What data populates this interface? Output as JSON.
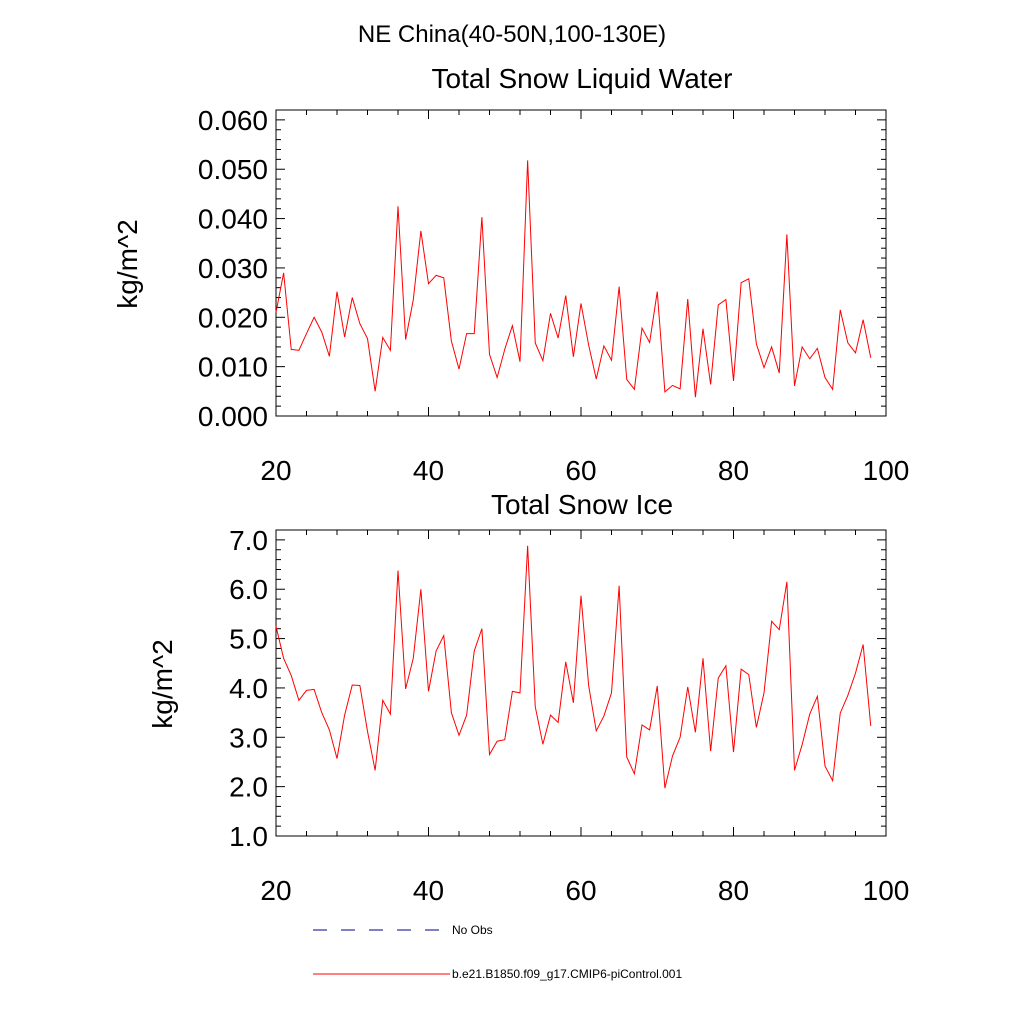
{
  "suptitle": "NE China(40-50N,100-130E)",
  "chart_data": [
    {
      "type": "line",
      "title": "Total Snow Liquid Water",
      "xlabel": "",
      "ylabel": "kg/m^2",
      "xlim": [
        20,
        100
      ],
      "ylim": [
        0.0,
        0.062
      ],
      "xticks": [
        "20",
        "40",
        "60",
        "80",
        "100"
      ],
      "yticks": [
        "0.000",
        "0.010",
        "0.020",
        "0.030",
        "0.040",
        "0.050",
        "0.060"
      ],
      "series": [
        {
          "name": "b.e21.B1850.f09_g17.CMIP6-piControl.001",
          "color": "#ff0000",
          "x": [
            20,
            21,
            22,
            23,
            24,
            25,
            26,
            27,
            28,
            29,
            30,
            31,
            32,
            33,
            34,
            35,
            36,
            37,
            38,
            39,
            40,
            41,
            42,
            43,
            44,
            45,
            46,
            47,
            48,
            49,
            50,
            51,
            52,
            53,
            54,
            55,
            56,
            57,
            58,
            59,
            60,
            61,
            62,
            63,
            64,
            65,
            66,
            67,
            68,
            69,
            70,
            71,
            72,
            73,
            74,
            75,
            76,
            77,
            78,
            79,
            80,
            81,
            82,
            83,
            84,
            85,
            86,
            87,
            88,
            89,
            90,
            91,
            92,
            93,
            94,
            95,
            96,
            97,
            98
          ],
          "values": [
            0.021,
            0.029,
            0.0135,
            0.0133,
            0.0167,
            0.02,
            0.017,
            0.0121,
            0.0252,
            0.016,
            0.024,
            0.0187,
            0.0157,
            0.005,
            0.0159,
            0.0133,
            0.0425,
            0.0155,
            0.0235,
            0.0375,
            0.0268,
            0.0285,
            0.028,
            0.0152,
            0.0095,
            0.0167,
            0.0167,
            0.0403,
            0.0125,
            0.0078,
            0.0135,
            0.0183,
            0.011,
            0.0518,
            0.0148,
            0.0112,
            0.0208,
            0.0158,
            0.0244,
            0.012,
            0.0228,
            0.0144,
            0.0075,
            0.0142,
            0.0113,
            0.0262,
            0.0074,
            0.0054,
            0.0178,
            0.0149,
            0.0252,
            0.0049,
            0.0062,
            0.0055,
            0.0237,
            0.0038,
            0.0177,
            0.0064,
            0.0225,
            0.0236,
            0.0071,
            0.027,
            0.0278,
            0.0146,
            0.0098,
            0.014,
            0.0087,
            0.0368,
            0.0061,
            0.014,
            0.0116,
            0.0137,
            0.0078,
            0.0054,
            0.0215,
            0.0148,
            0.0128,
            0.0195,
            0.0118
          ]
        }
      ]
    },
    {
      "type": "line",
      "title": "Total Snow Ice",
      "xlabel": "",
      "ylabel": "kg/m^2",
      "xlim": [
        20,
        100
      ],
      "ylim": [
        1.0,
        7.2
      ],
      "xticks": [
        "20",
        "40",
        "60",
        "80",
        "100"
      ],
      "yticks": [
        "1.0",
        "2.0",
        "3.0",
        "4.0",
        "5.0",
        "6.0",
        "7.0"
      ],
      "series": [
        {
          "name": "b.e21.B1850.f09_g17.CMIP6-piControl.001",
          "color": "#ff0000",
          "x": [
            20,
            21,
            22,
            23,
            24,
            25,
            26,
            27,
            28,
            29,
            30,
            31,
            32,
            33,
            34,
            35,
            36,
            37,
            38,
            39,
            40,
            41,
            42,
            43,
            44,
            45,
            46,
            47,
            48,
            49,
            50,
            51,
            52,
            53,
            54,
            55,
            56,
            57,
            58,
            59,
            60,
            61,
            62,
            63,
            64,
            65,
            66,
            67,
            68,
            69,
            70,
            71,
            72,
            73,
            74,
            75,
            76,
            77,
            78,
            79,
            80,
            81,
            82,
            83,
            84,
            85,
            86,
            87,
            88,
            89,
            90,
            91,
            92,
            93,
            94,
            95,
            96,
            97,
            98
          ],
          "values": [
            5.25,
            4.6,
            4.25,
            3.75,
            3.95,
            3.97,
            3.5,
            3.15,
            2.57,
            3.45,
            4.06,
            4.05,
            3.12,
            2.33,
            3.75,
            3.47,
            6.38,
            3.98,
            4.6,
            6.0,
            3.93,
            4.75,
            5.06,
            3.5,
            3.04,
            3.45,
            4.75,
            5.2,
            2.65,
            2.92,
            2.95,
            3.93,
            3.9,
            6.88,
            3.62,
            2.86,
            3.45,
            3.3,
            4.53,
            3.7,
            5.87,
            4.05,
            3.13,
            3.43,
            3.9,
            6.07,
            2.6,
            2.26,
            3.25,
            3.15,
            4.04,
            1.97,
            2.62,
            3.0,
            4.02,
            3.1,
            4.6,
            2.72,
            4.2,
            4.45,
            2.7,
            4.38,
            4.27,
            3.2,
            3.9,
            5.35,
            5.18,
            6.15,
            2.33,
            2.85,
            3.47,
            3.83,
            2.42,
            2.12,
            3.49,
            3.85,
            4.3,
            4.88,
            3.23
          ]
        }
      ]
    }
  ],
  "legend": [
    {
      "label": "No Obs",
      "color": "#00008b",
      "dash": true
    },
    {
      "label": "b.e21.B1850.f09_g17.CMIP6-piControl.001",
      "color": "#ff0000",
      "dash": false
    }
  ]
}
